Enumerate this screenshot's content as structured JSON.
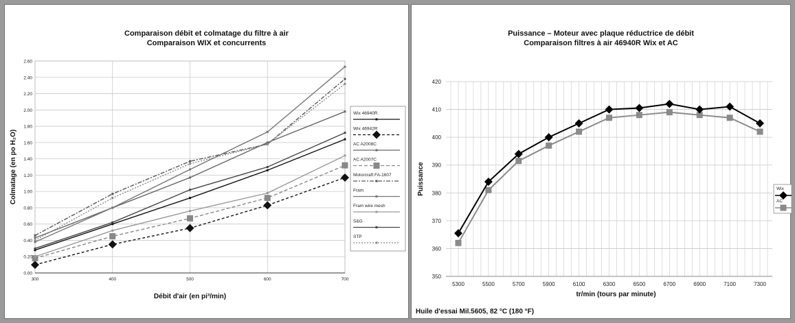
{
  "colors": {
    "frame": "#9a9a9a",
    "grid": "#c8c8c8",
    "dark": "#111111",
    "mid": "#666666",
    "light": "#999999",
    "wix": "#000000",
    "ac": "#8a8a8a"
  },
  "chart_data": [
    {
      "type": "line",
      "title": "Comparaison débit et colmatage du filtre à air",
      "subtitle": "Comparaison WIX et concurrents",
      "xlabel": "Débit d'air (en pi³/min)",
      "ylabel": "Colmatage (en po H₂O)",
      "x": [
        300,
        400,
        500,
        600,
        700
      ],
      "x_ticks": [
        "300",
        "400",
        "500",
        "600",
        "700"
      ],
      "ylim": [
        0,
        2.6
      ],
      "y_ticks": [
        "0.00",
        "0.20",
        "0.40",
        "0.60",
        "0.80",
        "1.00",
        "1.20",
        "1.40",
        "1.60",
        "1.80",
        "2.00",
        "2.20",
        "2.40",
        "2.60"
      ],
      "grid": true,
      "legend_position": "right",
      "series": [
        {
          "name": "Wix 46940R",
          "values": [
            0.28,
            0.6,
            0.92,
            1.26,
            1.64
          ],
          "color": "#111111",
          "dash": "",
          "marker": "tick"
        },
        {
          "name": "Wix 46942R",
          "values": [
            0.1,
            0.35,
            0.55,
            0.83,
            1.17
          ],
          "color": "#111111",
          "dash": "4,3",
          "marker": "diamond"
        },
        {
          "name": "AC A2008C",
          "values": [
            0.43,
            0.8,
            1.17,
            1.6,
            1.98
          ],
          "color": "#666666",
          "dash": "",
          "marker": "tick"
        },
        {
          "name": "AC A2007C",
          "values": [
            0.18,
            0.45,
            0.67,
            0.92,
            1.32
          ],
          "color": "#888888",
          "dash": "5,3",
          "marker": "square"
        },
        {
          "name": "Motorcraft FA-1607",
          "values": [
            0.46,
            0.97,
            1.37,
            1.58,
            2.38
          ],
          "color": "#555555",
          "dash": "6,2,2,2",
          "marker": "tick"
        },
        {
          "name": "Fram",
          "values": [
            0.38,
            0.8,
            1.27,
            1.73,
            2.53
          ],
          "color": "#777777",
          "dash": "",
          "marker": "tick"
        },
        {
          "name": "Fram wire mesh",
          "values": [
            0.2,
            0.52,
            0.76,
            0.98,
            1.44
          ],
          "color": "#999999",
          "dash": "",
          "marker": "tick"
        },
        {
          "name": "S&G",
          "values": [
            0.3,
            0.62,
            1.02,
            1.3,
            1.72
          ],
          "color": "#444444",
          "dash": "",
          "marker": "tick"
        },
        {
          "name": "STP",
          "values": [
            0.4,
            0.92,
            1.34,
            1.58,
            2.32
          ],
          "color": "#888888",
          "dash": "2,2",
          "marker": "tick"
        }
      ]
    },
    {
      "type": "line",
      "title": "Puissance – Moteur avec plaque réductrice de débit",
      "subtitle": "Comparaison filtres à air 46940R Wix et AC",
      "xlabel": "tr/min (tours par minute)",
      "ylabel": "Puissance",
      "x": [
        5300,
        5500,
        5700,
        5900,
        6100,
        6300,
        6500,
        6700,
        6900,
        7100,
        7300
      ],
      "x_ticks": [
        "5300",
        "5500",
        "5700",
        "5900",
        "6100",
        "6300",
        "6500",
        "6700",
        "6900",
        "7100",
        "7300"
      ],
      "ylim": [
        350,
        420
      ],
      "y_ticks": [
        "350",
        "360",
        "370",
        "380",
        "390",
        "400",
        "410",
        "420"
      ],
      "grid": true,
      "legend_position": "right",
      "series": [
        {
          "name": "Wix",
          "values": [
            365.5,
            384,
            394,
            400,
            405,
            410,
            410.5,
            412,
            410,
            411,
            405
          ],
          "color": "#000000",
          "marker": "diamond"
        },
        {
          "name": "AC",
          "values": [
            362,
            381,
            391.5,
            397,
            402,
            407,
            408,
            409,
            408,
            407,
            402
          ],
          "color": "#8a8a8a",
          "marker": "square"
        }
      ],
      "footnote": "Huile d'essai Mil.5605, 82 °C (180 °F)"
    }
  ]
}
